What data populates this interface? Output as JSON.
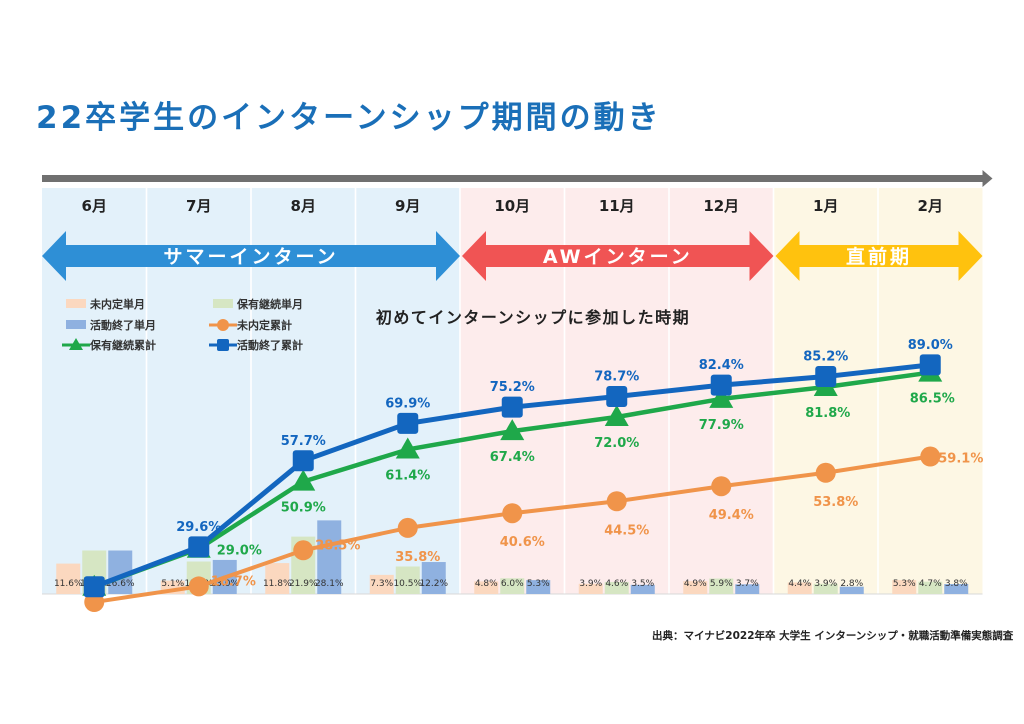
{
  "page": {
    "title": "22卒学生のインターンシップ期間の動き",
    "source": "出典：マイナビ2022年卒 大学生 インターンシップ・就職活動準備実態調査"
  },
  "periods": [
    {
      "label": "サマーインターン",
      "color": "#2e8fd6"
    },
    {
      "label": "AWインターン",
      "color": "#f05454"
    },
    {
      "label": "直前期",
      "color": "#ffc20e"
    }
  ],
  "colors": {
    "summer_bg": "#e3f1fa",
    "aw_bg": "#fdecec",
    "pre_bg": "#fdf7e4",
    "timeline_arrow": "#707070"
  },
  "chart_data": {
    "type": "line",
    "title": "初めてインターンシップに参加した時期",
    "categories": [
      "6月",
      "7月",
      "8月",
      "9月",
      "10月",
      "11月",
      "12月",
      "1月",
      "2月"
    ],
    "ylim": [
      0,
      100
    ],
    "grid": false,
    "legend_position": "top-left",
    "bar_series": [
      {
        "name": "未内定単月",
        "color": "#fbd8bf",
        "values": [
          11.6,
          5.1,
          11.8,
          7.3,
          4.8,
          3.9,
          4.9,
          4.4,
          5.3
        ]
      },
      {
        "name": "保有継続単月",
        "color": "#d6e6c3",
        "values": [
          16.6,
          12.4,
          21.9,
          10.5,
          6.0,
          4.6,
          5.9,
          3.9,
          4.7
        ]
      },
      {
        "name": "活動終了単月",
        "color": "#8fb1e0",
        "values": [
          16.6,
          13.0,
          28.1,
          12.2,
          5.3,
          3.5,
          3.7,
          2.8,
          3.8
        ]
      }
    ],
    "series": [
      {
        "name": "未内定累計",
        "color": "#f0944a",
        "marker": "circle",
        "values": [
          11.6,
          16.7,
          28.5,
          35.8,
          40.6,
          44.5,
          49.4,
          53.8,
          59.1
        ]
      },
      {
        "name": "保有継続累計",
        "color": "#1fa84a",
        "marker": "triangle",
        "values": [
          16.6,
          29.0,
          50.9,
          61.4,
          67.4,
          72.0,
          77.9,
          81.8,
          86.5
        ]
      },
      {
        "name": "活動終了累計",
        "color": "#1366bf",
        "marker": "square",
        "values": [
          16.6,
          29.6,
          57.7,
          69.9,
          75.2,
          78.7,
          82.4,
          85.2,
          89.0
        ]
      }
    ]
  }
}
